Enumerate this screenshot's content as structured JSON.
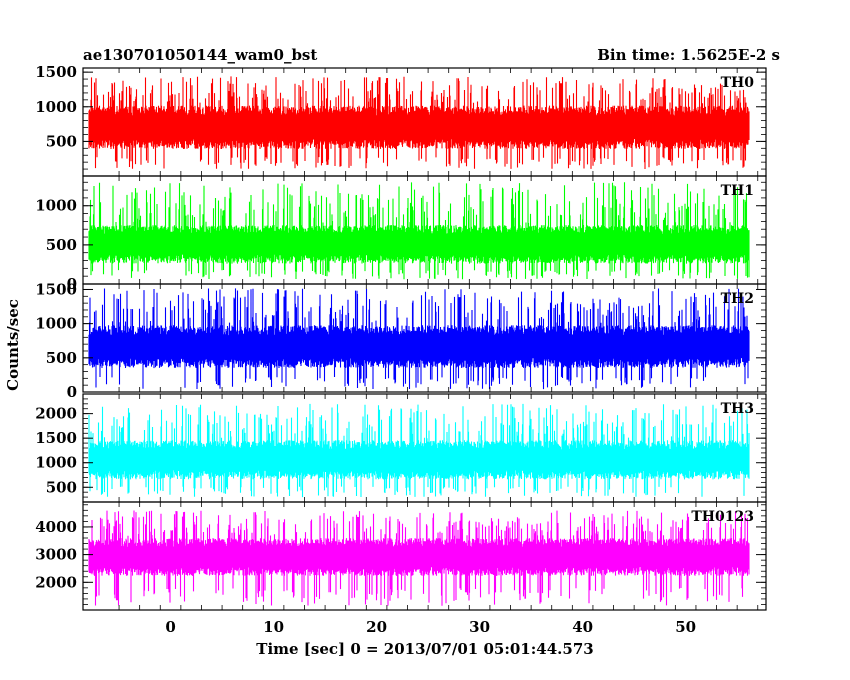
{
  "chart_data": {
    "type": "line",
    "title": "ae130701050144_wam0_bst",
    "bin_time_label": "Bin time: 1.5625E-2 s",
    "xlabel": "Time [sec] 0 = 2013/07/01 05:01:44.573",
    "ylabel": "Counts/sec",
    "xlim": [
      -8.5,
      57.8
    ],
    "data_xrange": [
      -7.9,
      56.1
    ],
    "xticks": [
      0,
      10,
      20,
      30,
      40,
      50
    ],
    "panels": [
      {
        "name": "TH0",
        "color": "#ff0000",
        "ylim": [
          0,
          1560
        ],
        "yticks": [
          500,
          1000,
          1500
        ],
        "mean": 720,
        "spread": 330,
        "min": 100,
        "max": 1550,
        "spiky_max": 1440
      },
      {
        "name": "TH1",
        "color": "#00ff00",
        "ylim": [
          0,
          1380
        ],
        "yticks": [
          0,
          500,
          1000
        ],
        "mean": 520,
        "spread": 260,
        "min": 60,
        "max": 1380,
        "spiky_max": 1300
      },
      {
        "name": "TH2",
        "color": "#0000ff",
        "ylim": [
          0,
          1580
        ],
        "yticks": [
          0,
          500,
          1000,
          1500
        ],
        "mean": 680,
        "spread": 330,
        "min": 40,
        "max": 1580,
        "spiky_max": 1520
      },
      {
        "name": "TH3",
        "color": "#00ffff",
        "ylim": [
          200,
          2400
        ],
        "yticks": [
          500,
          1000,
          1500,
          2000
        ],
        "mean": 1080,
        "spread": 420,
        "min": 300,
        "max": 2400,
        "spiky_max": 2200
      },
      {
        "name": "TH0123",
        "color": "#ff00ff",
        "ylim": [
          1000,
          4900
        ],
        "yticks": [
          2000,
          3000,
          4000
        ],
        "mean": 2950,
        "spread": 720,
        "min": 1150,
        "max": 4850,
        "spiky_max": 4600
      }
    ]
  }
}
